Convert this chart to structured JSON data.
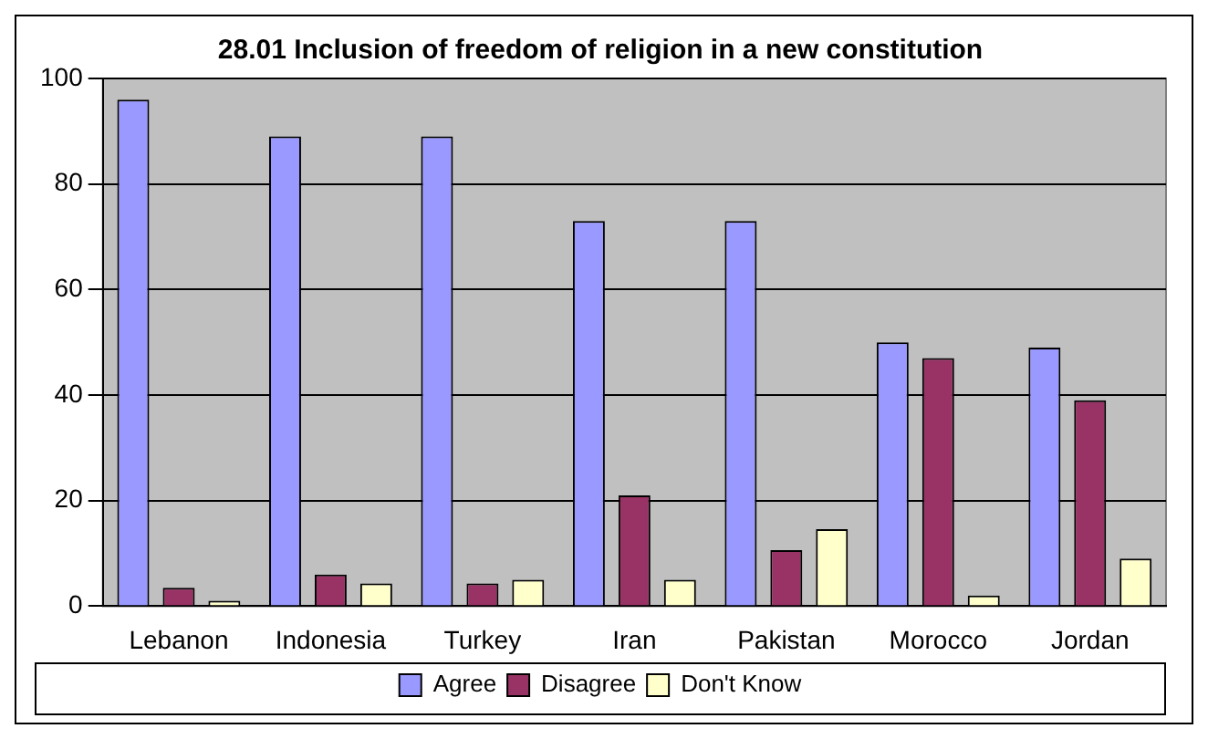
{
  "chart_data": {
    "type": "bar",
    "title": "28.01 Inclusion of freedom of religion in a new constitution",
    "categories": [
      "Lebanon",
      "Indonesia",
      "Turkey",
      "Iran",
      "Pakistan",
      "Morocco",
      "Jordan"
    ],
    "series": [
      {
        "name": "Agree",
        "color": "#9999ff",
        "values": [
          96,
          89,
          89,
          73,
          73,
          50,
          49
        ]
      },
      {
        "name": "Disagree",
        "color": "#993366",
        "values": [
          3.5,
          6,
          4.3,
          21,
          10.6,
          47,
          39
        ]
      },
      {
        "name": "Don't Know",
        "color": "#ffffcc",
        "values": [
          1,
          4.3,
          5,
          5,
          14.6,
          2,
          9
        ]
      }
    ],
    "ylim": [
      0,
      100
    ],
    "yticks": [
      0,
      20,
      40,
      60,
      80,
      100
    ],
    "grid": "y",
    "legend": "bottom"
  }
}
